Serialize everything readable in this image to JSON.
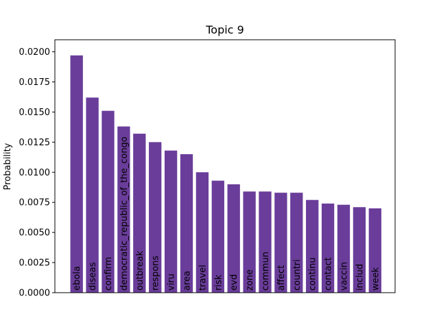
{
  "chart_data": {
    "type": "bar",
    "title": "Topic 9",
    "xlabel": "",
    "ylabel": "Probability",
    "ylim": [
      0,
      0.021
    ],
    "yticks": [
      "0.0000",
      "0.0025",
      "0.0050",
      "0.0075",
      "0.0100",
      "0.0125",
      "0.0150",
      "0.0175",
      "0.0200"
    ],
    "grid": false,
    "bar_color": "#6a3d9a",
    "categories": [
      "ebola",
      "diseas",
      "confirm",
      "democratic_republic_of_the_congo",
      "outbreak",
      "respons",
      "viru",
      "area",
      "travel",
      "risk",
      "evd",
      "zone",
      "commun",
      "affect",
      "countri",
      "continu",
      "contact",
      "vaccin",
      "includ",
      "week"
    ],
    "values": [
      0.0197,
      0.0162,
      0.0151,
      0.0138,
      0.0132,
      0.0125,
      0.0118,
      0.0115,
      0.01,
      0.0093,
      0.009,
      0.0084,
      0.0084,
      0.0083,
      0.0083,
      0.0077,
      0.0074,
      0.0073,
      0.0071,
      0.007
    ]
  }
}
